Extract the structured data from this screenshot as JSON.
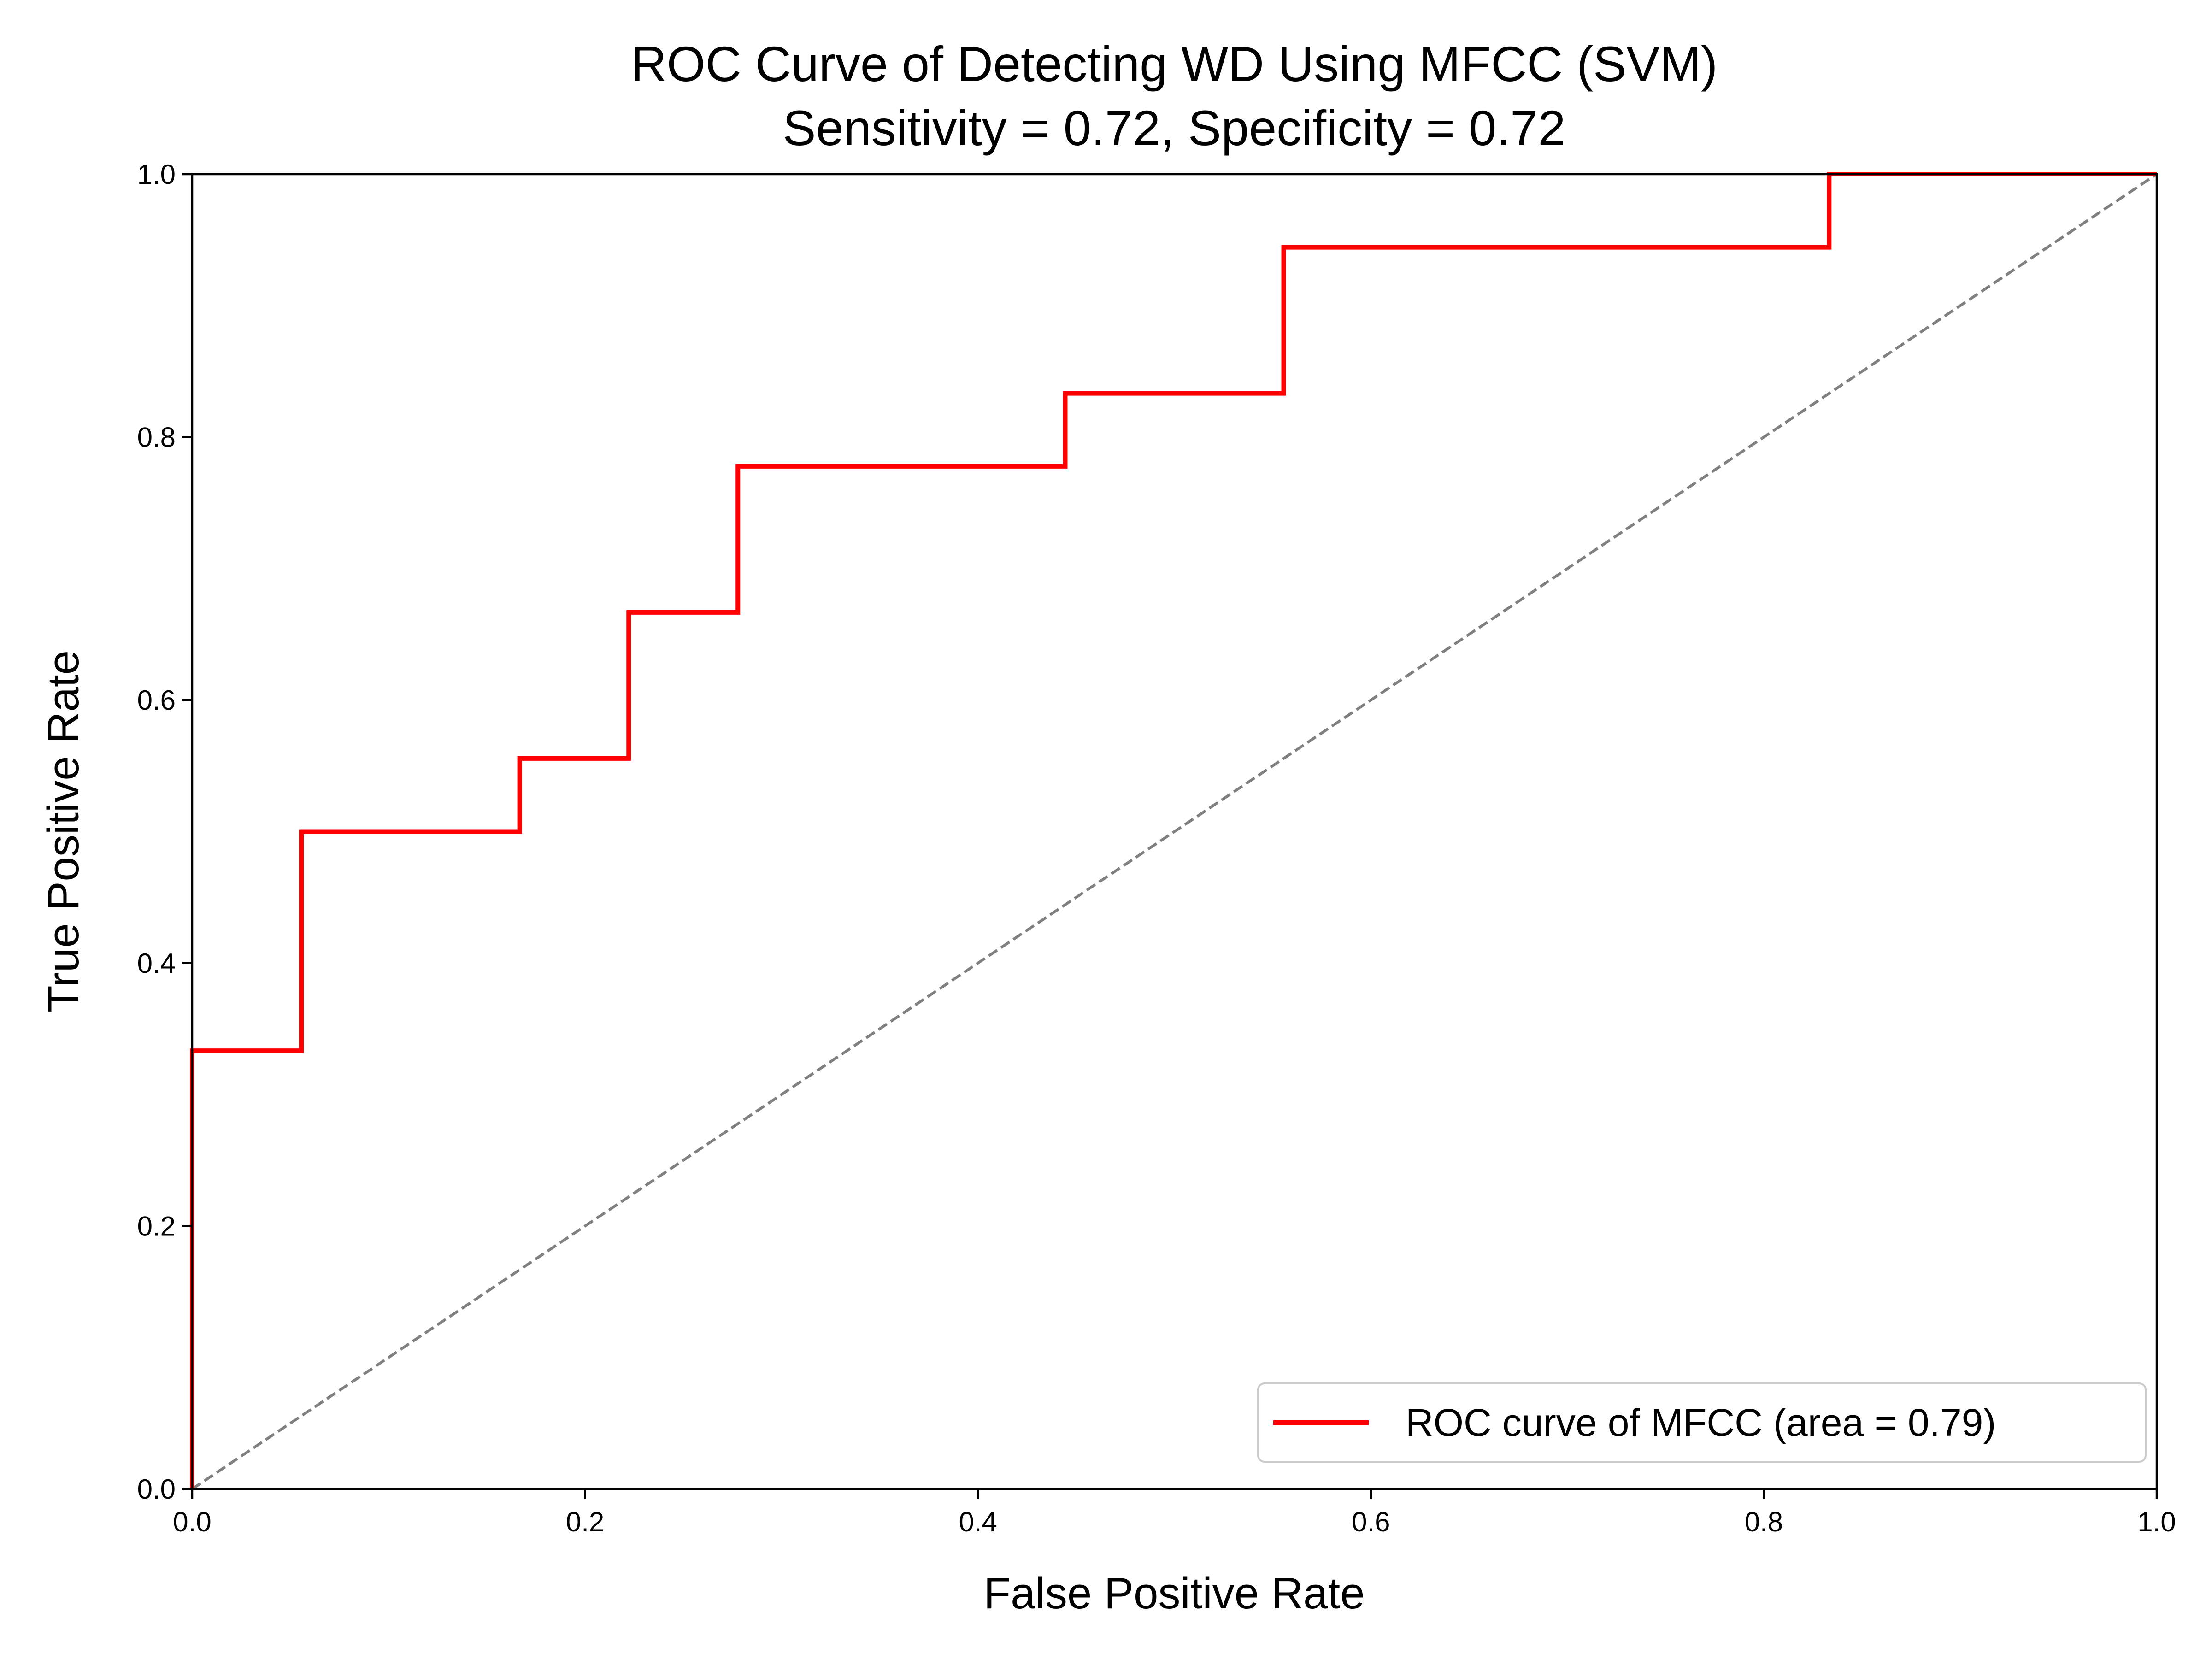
{
  "chart_data": {
    "type": "line",
    "title": "ROC Curve of Detecting WD Using MFCC (SVM)",
    "subtitle": "Sensitivity = 0.72, Specificity = 0.72",
    "xlabel": "False Positive Rate",
    "ylabel": "True Positive Rate",
    "xlim": [
      0.0,
      1.0
    ],
    "ylim": [
      0.0,
      1.0
    ],
    "xticks": [
      "0.0",
      "0.2",
      "0.4",
      "0.6",
      "0.8",
      "1.0"
    ],
    "yticks": [
      "0.0",
      "0.2",
      "0.4",
      "0.6",
      "0.8",
      "1.0"
    ],
    "grid": false,
    "legend_position": "lower-right",
    "series": [
      {
        "name": "ROC curve of MFCC (area = 0.79)",
        "color": "#ff0000",
        "style": "solid",
        "x": [
          0.0,
          0.0,
          0.0556,
          0.0556,
          0.1667,
          0.1667,
          0.2222,
          0.2222,
          0.2778,
          0.2778,
          0.4444,
          0.4444,
          0.5556,
          0.5556,
          0.8333,
          0.8333,
          1.0
        ],
        "y": [
          0.0,
          0.3333,
          0.3333,
          0.5,
          0.5,
          0.5556,
          0.5556,
          0.6667,
          0.6667,
          0.7778,
          0.7778,
          0.8333,
          0.8333,
          0.9444,
          0.9444,
          1.0,
          1.0
        ]
      }
    ],
    "reference_line": {
      "x": [
        0.0,
        1.0
      ],
      "y": [
        0.0,
        1.0
      ],
      "color": "#808080",
      "style": "dashed"
    }
  }
}
